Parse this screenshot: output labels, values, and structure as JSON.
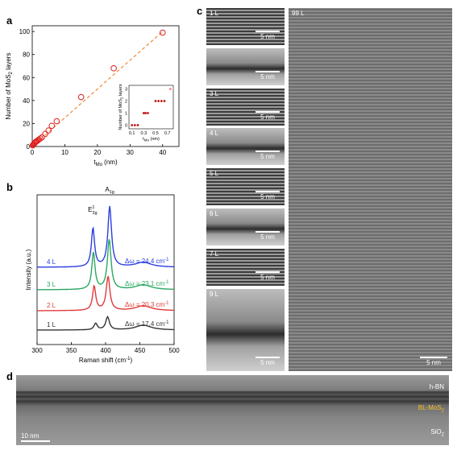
{
  "panels": {
    "a": "a",
    "b": "b",
    "c": "c",
    "d": "d"
  },
  "chart_data": [
    {
      "type": "scatter",
      "panel": "a",
      "xlabel": "t_Mo (nm)",
      "ylabel": "Number of MoS2 layers",
      "xlim": [
        0,
        45
      ],
      "ylim": [
        0,
        105
      ],
      "xticks": [
        0,
        10,
        20,
        30,
        40
      ],
      "yticks": [
        0,
        20,
        40,
        60,
        80,
        100
      ],
      "points": [
        {
          "x": 0.15,
          "y": 1
        },
        {
          "x": 0.3,
          "y": 1.5
        },
        {
          "x": 0.5,
          "y": 2
        },
        {
          "x": 0.7,
          "y": 3
        },
        {
          "x": 0.9,
          "y": 3.5
        },
        {
          "x": 1.1,
          "y": 4
        },
        {
          "x": 1.3,
          "y": 4.5
        },
        {
          "x": 1.6,
          "y": 5
        },
        {
          "x": 2,
          "y": 6
        },
        {
          "x": 2.5,
          "y": 7
        },
        {
          "x": 3,
          "y": 8
        },
        {
          "x": 4,
          "y": 11
        },
        {
          "x": 5,
          "y": 14
        },
        {
          "x": 6,
          "y": 18
        },
        {
          "x": 7.5,
          "y": 22
        },
        {
          "x": 15,
          "y": 43
        },
        {
          "x": 25,
          "y": 68
        },
        {
          "x": 40,
          "y": 99
        }
      ],
      "fit_line": [
        [
          0,
          0
        ],
        [
          40,
          100
        ]
      ],
      "inset": {
        "xlabel": "t_Mo (nm)",
        "ylabel": "Number of MoS2 layers",
        "xticks": [
          "0.1",
          "0.3",
          "0.5",
          "0.7"
        ],
        "yticks": [
          "0",
          "1",
          "2",
          "3"
        ],
        "points": [
          {
            "x": 0.1,
            "y": 0
          },
          {
            "x": 0.15,
            "y": 0
          },
          {
            "x": 0.2,
            "y": 0
          },
          {
            "x": 0.3,
            "y": 1
          },
          {
            "x": 0.33,
            "y": 1
          },
          {
            "x": 0.37,
            "y": 1
          },
          {
            "x": 0.5,
            "y": 2
          },
          {
            "x": 0.55,
            "y": 2
          },
          {
            "x": 0.6,
            "y": 2
          },
          {
            "x": 0.65,
            "y": 2
          },
          {
            "x": 0.75,
            "y": 3
          }
        ]
      }
    },
    {
      "type": "line",
      "panel": "b",
      "xlabel": "Raman shift (cm-1)",
      "ylabel": "Intensity (a.u.)",
      "xlim": [
        300,
        500
      ],
      "xticks": [
        300,
        350,
        400,
        450,
        500
      ],
      "peak_labels": [
        "E",
        "2g",
        "1",
        "A",
        "1g"
      ],
      "series": [
        {
          "name": "1 L",
          "color": "#333333",
          "E2g": 385.5,
          "A1g": 402.9,
          "delta": "Δω = 17.4 cm",
          "offset": 0
        },
        {
          "name": "2 L",
          "color": "#e03a3a",
          "E2g": 383.3,
          "A1g": 403.6,
          "delta": "Δω = 20.3 cm",
          "offset": 1
        },
        {
          "name": "3 L",
          "color": "#2aa860",
          "E2g": 382.2,
          "A1g": 405.3,
          "delta": "Δω = 23.1 cm",
          "offset": 2
        },
        {
          "name": "4 L",
          "color": "#2a3ee0",
          "E2g": 381.6,
          "A1g": 406.0,
          "delta": "Δω = 24.4 cm",
          "offset": 3
        }
      ]
    }
  ],
  "panel_c": {
    "images": [
      {
        "label": "1 L",
        "scale": "5 nm"
      },
      {
        "label": "",
        "scale": "5 nm"
      },
      {
        "label": "3 L",
        "scale": "5 nm"
      },
      {
        "label": "4 L",
        "scale": "5 nm"
      },
      {
        "label": "5 L",
        "scale": "5 nm"
      },
      {
        "label": "6 L",
        "scale": "5 nm"
      },
      {
        "label": "7 L",
        "scale": "5 nm"
      },
      {
        "label": "9 L",
        "scale": "5 nm"
      }
    ],
    "large": {
      "label": "99 L",
      "scale": "5 nm"
    }
  },
  "panel_d": {
    "hbn": "h-BN",
    "bl": "BL-MoS",
    "sio2": "SiO",
    "scale": "10 nm",
    "bl_color": "#f0c020"
  }
}
